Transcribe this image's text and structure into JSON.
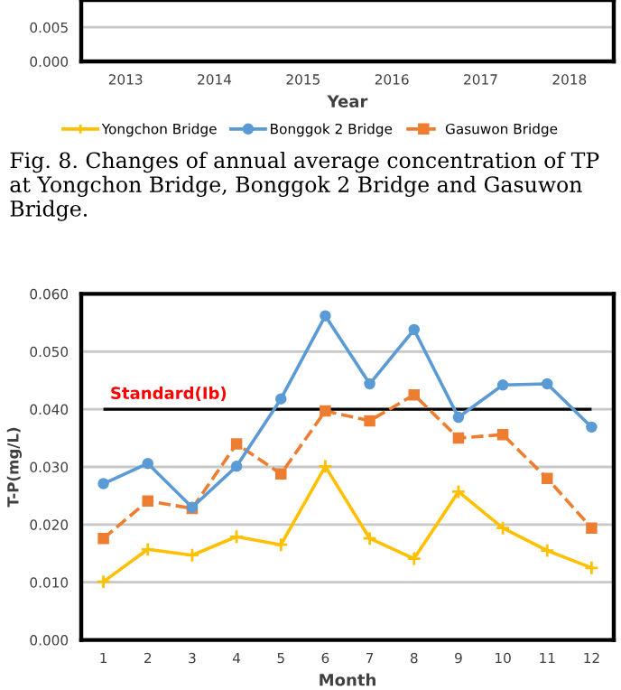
{
  "chart_data": [
    {
      "type": "line",
      "categories": [
        "2013",
        "2014",
        "2015",
        "2016",
        "2017",
        "2018"
      ],
      "xlabel": "Year",
      "ylim": [
        0,
        0.009
      ],
      "yticks": [
        {
          "value": 0,
          "label": "0.000"
        },
        {
          "value": 0.005,
          "label": "0.005"
        }
      ],
      "grid": "y",
      "legend": "bottom",
      "series": [
        {
          "name": "Yongchon Bridge",
          "color": "#ffc000",
          "marker": "cross",
          "line_style": "solid",
          "values": [
            null,
            null,
            null,
            null,
            null,
            null
          ]
        },
        {
          "name": "Bonggok 2 Bridge",
          "color": "#5b9bd5",
          "marker": "circle",
          "line_style": "solid",
          "values": [
            null,
            null,
            null,
            null,
            null,
            null
          ]
        },
        {
          "name": "Gasuwon Bridge",
          "color": "#ed7d31",
          "marker": "square",
          "line_style": "dashed",
          "values": [
            null,
            null,
            null,
            null,
            null,
            null
          ]
        }
      ],
      "annotations": [
        "Fig. 8. Changes of annual average concentration of TP at Yongchon Bridge, Bonggok 2 Bridge and Gasuwon Bridge."
      ]
    },
    {
      "type": "line",
      "categories": [
        "1",
        "2",
        "3",
        "4",
        "5",
        "6",
        "7",
        "8",
        "9",
        "10",
        "11",
        "12"
      ],
      "xlabel": "Month",
      "ylabel": "T-P(mg/L)",
      "ylim": [
        0,
        0.06
      ],
      "yticks": [
        {
          "value": 0,
          "label": "0.000"
        },
        {
          "value": 0.01,
          "label": "0.010"
        },
        {
          "value": 0.02,
          "label": "0.020"
        },
        {
          "value": 0.03,
          "label": "0.030"
        },
        {
          "value": 0.04,
          "label": "0.040"
        },
        {
          "value": 0.05,
          "label": "0.050"
        },
        {
          "value": 0.06,
          "label": "0.060"
        }
      ],
      "grid": "y",
      "legend": false,
      "ref_lines": [
        {
          "axis": "y",
          "value": 0.04,
          "label": "Standard(Ib)",
          "color": "#000000"
        }
      ],
      "series": [
        {
          "color": "#ffc000",
          "marker": "cross",
          "line_style": "solid",
          "values": [
            0.0101,
            0.0157,
            0.0147,
            0.0179,
            0.0165,
            0.0301,
            0.0176,
            0.0141,
            0.0257,
            0.0194,
            0.0155,
            0.0125
          ]
        },
        {
          "color": "#5b9bd5",
          "marker": "circle",
          "line_style": "solid",
          "values": [
            0.0271,
            0.0306,
            0.023,
            0.0301,
            0.0418,
            0.0562,
            0.0444,
            0.0538,
            0.0386,
            0.0442,
            0.0444,
            0.0369
          ]
        },
        {
          "color": "#ed7d31",
          "marker": "square",
          "line_style": "dashed",
          "values": [
            0.0176,
            0.0241,
            0.0228,
            0.034,
            0.0288,
            0.0397,
            0.038,
            0.0425,
            0.035,
            0.0356,
            0.028,
            0.0194
          ]
        }
      ]
    }
  ]
}
